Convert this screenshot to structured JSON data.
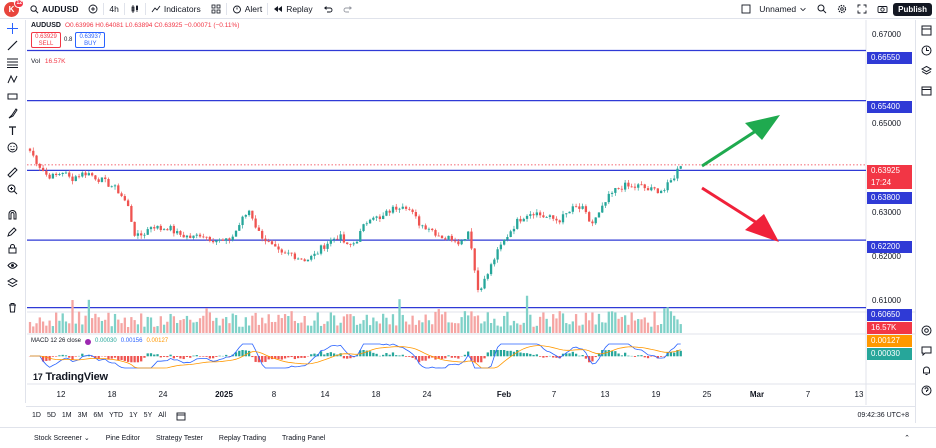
{
  "topbar": {
    "avatar_letter": "K",
    "avatar_badge": "12",
    "symbol": "AUDUSD",
    "interval": "4h",
    "indicators_label": "Indicators",
    "alert_label": "Alert",
    "replay_label": "Replay",
    "layout_name": "Unnamed",
    "publish_label": "Publish"
  },
  "legend": {
    "ohlc": "O0.63996 H0.64081 L0.63894 C0.63925 −0.00071 (−0.11%)",
    "sell_price": "0.63929",
    "sell_label": "SELL",
    "spread": "0.8",
    "buy_price": "0.63937",
    "buy_label": "BUY",
    "vol_label": "Vol",
    "vol_value": "16.57K"
  },
  "macd_legend": {
    "label": "MACD 12 26 close",
    "v1": "0.00030",
    "v2": "0.00156",
    "v3": "0.00127"
  },
  "watermark": "TradingView",
  "price_axis": {
    "ticks": [
      "0.67000",
      "0.65000",
      "0.63000",
      "0.62000",
      "0.61000"
    ],
    "levels": [
      "0.66550",
      "0.65400",
      "0.63800",
      "0.62200",
      "0.60650"
    ],
    "last_price": "0.63925",
    "countdown": "17:24",
    "vol_label": "16.57K",
    "macd_signal": "0.00127",
    "macd_hist": "0.00030"
  },
  "time_axis": [
    "12",
    "18",
    "24",
    "2025",
    "8",
    "14",
    "18",
    "24",
    "Feb",
    "7",
    "13",
    "19",
    "25",
    "Mar",
    "7",
    "13"
  ],
  "range_buttons": [
    "1D",
    "5D",
    "1M",
    "3M",
    "6M",
    "YTD",
    "1Y",
    "5Y",
    "All"
  ],
  "clock": "09:42:36 UTC+8",
  "bottom_tabs": [
    "Stock Screener",
    "Pine Editor",
    "Strategy Tester",
    "Replay Trading",
    "Trading Panel"
  ],
  "colors": {
    "up": "#26a69a",
    "down": "#ef5350",
    "level_line": "#2f3ad6",
    "arrow_up": "#1faa4f",
    "arrow_down": "#f0213a",
    "price_label": "#f23645"
  },
  "chart_data": {
    "type": "candlestick",
    "symbol": "AUDUSD",
    "interval": "4h",
    "ylim": [
      0.6055,
      0.6725
    ],
    "horizontal_levels": [
      0.6655,
      0.654,
      0.638,
      0.622,
      0.6065
    ],
    "last_price": 0.63925,
    "close_path": [
      0.6425,
      0.6395,
      0.637,
      0.6365,
      0.6378,
      0.636,
      0.637,
      0.6375,
      0.6365,
      0.6355,
      0.6345,
      0.633,
      0.63,
      0.6225,
      0.6235,
      0.6255,
      0.6245,
      0.625,
      0.6235,
      0.623,
      0.6225,
      0.6235,
      0.6225,
      0.622,
      0.6215,
      0.623,
      0.6265,
      0.629,
      0.624,
      0.622,
      0.62,
      0.6185,
      0.619,
      0.618,
      0.6175,
      0.6185,
      0.6205,
      0.622,
      0.623,
      0.6205,
      0.6215,
      0.625,
      0.628,
      0.6265,
      0.6285,
      0.6295,
      0.6305,
      0.628,
      0.6255,
      0.625,
      0.6235,
      0.6225,
      0.6225,
      0.6215,
      0.6245,
      0.6105,
      0.613,
      0.6175,
      0.621,
      0.624,
      0.6265,
      0.628,
      0.6285,
      0.6275,
      0.627,
      0.6265,
      0.628,
      0.6295,
      0.629,
      0.6255,
      0.628,
      0.6315,
      0.6335,
      0.6345,
      0.634,
      0.6345,
      0.6335,
      0.6335,
      0.6335,
      0.636,
      0.6395
    ],
    "volume_peak": 16.57,
    "macd": {
      "macd": 0.00156,
      "signal": 0.00127,
      "histogram": 0.0003
    }
  }
}
